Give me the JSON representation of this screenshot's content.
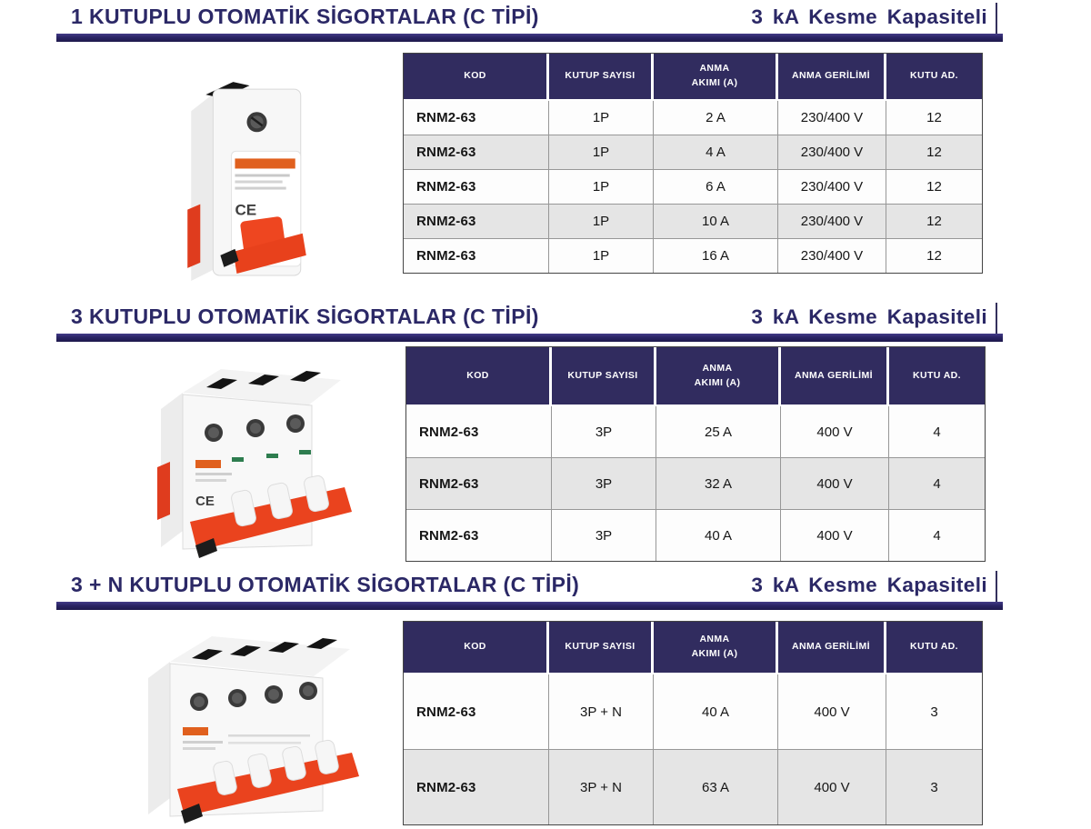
{
  "colors": {
    "title_navy": "#2B2866",
    "header_bg": "#312C5F",
    "row_gray": "#E5E5E5",
    "breaker_red": "#E8431E",
    "underline_bar": "#2A2465"
  },
  "sections": [
    {
      "title": "1 KUTUPLU OTOMATİK SİGORTALAR (C TİPİ)",
      "capacity": "3 kA  Kesme Kapasiteli",
      "image": "1-pole-miniature-circuit-breaker-photo",
      "table": {
        "headers": [
          "KOD",
          "KUTUP SAYISI",
          "ANMA\nAKIMI (A)",
          "ANMA GERİLİMİ",
          "KUTU AD."
        ],
        "rows": [
          [
            "RNM2-63",
            "1P",
            "2 A",
            "230/400 V",
            "12"
          ],
          [
            "RNM2-63",
            "1P",
            "4 A",
            "230/400 V",
            "12"
          ],
          [
            "RNM2-63",
            "1P",
            "6 A",
            "230/400 V",
            "12"
          ],
          [
            "RNM2-63",
            "1P",
            "10 A",
            "230/400 V",
            "12"
          ],
          [
            "RNM2-63",
            "1P",
            "16 A",
            "230/400 V",
            "12"
          ]
        ]
      }
    },
    {
      "title": "3 KUTUPLU OTOMATİK SİGORTALAR (C TİPİ)",
      "capacity": "3 kA  Kesme Kapasiteli",
      "image": "3-pole-miniature-circuit-breaker-photo",
      "table": {
        "headers": [
          "KOD",
          "KUTUP SAYISI",
          "ANMA\nAKIMI (A)",
          "ANMA GERİLİMİ",
          "KUTU AD."
        ],
        "rows": [
          [
            "RNM2-63",
            "3P",
            "25 A",
            "400 V",
            "4"
          ],
          [
            "RNM2-63",
            "3P",
            "32 A",
            "400 V",
            "4"
          ],
          [
            "RNM2-63",
            "3P",
            "40 A",
            "400 V",
            "4"
          ]
        ]
      }
    },
    {
      "title": "3 + N KUTUPLU OTOMATİK SİGORTALAR (C TİPİ)",
      "capacity": "3 kA  Kesme Kapasiteli",
      "image": "3-plus-n-pole-miniature-circuit-breaker-photo",
      "table": {
        "headers": [
          "KOD",
          "KUTUP SAYISI",
          "ANMA\nAKIMI (A)",
          "ANMA GERİLİMİ",
          "KUTU AD."
        ],
        "rows": [
          [
            "RNM2-63",
            "3P + N",
            "40 A",
            "400 V",
            "3"
          ],
          [
            "RNM2-63",
            "3P + N",
            "63 A",
            "400 V",
            "3"
          ]
        ]
      }
    }
  ]
}
